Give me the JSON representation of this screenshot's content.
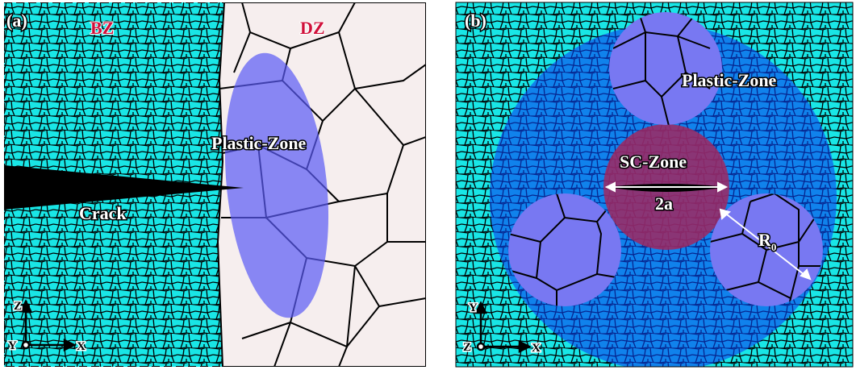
{
  "panel_a": {
    "label": "(a)",
    "bz": "BZ",
    "dz": "DZ",
    "plastic_zone": "Plastic-Zone",
    "crack": "Crack",
    "axes": {
      "vertical": "Z",
      "out": "Y",
      "horizontal": "X"
    }
  },
  "panel_b": {
    "label": "(b)",
    "plastic_zone": "Plastic-Zone",
    "sc_zone": "SC-Zone",
    "crack_length": "2a",
    "radius": "R",
    "radius_subscript": "0",
    "axes": {
      "vertical": "Y",
      "out": "Z",
      "horizontal": "X"
    }
  }
}
